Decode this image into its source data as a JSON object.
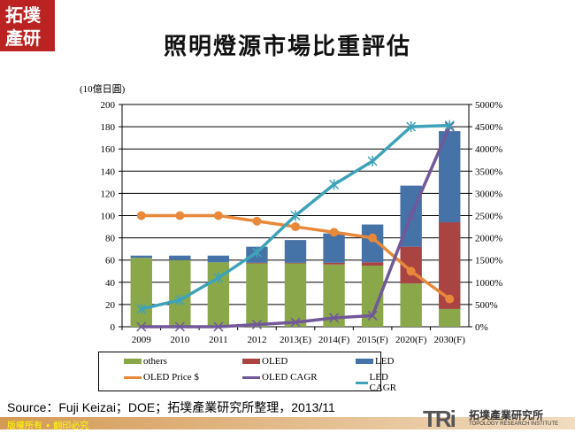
{
  "logo": {
    "text": "拓墣產研"
  },
  "title": "照明燈源市場比重評估",
  "chart_data": {
    "type": "bar",
    "stacked": true,
    "unit_label": "(10億日圓)",
    "categories": [
      "2009",
      "2010",
      "2011",
      "2012",
      "2013(E)",
      "2014(F)",
      "2015(F)",
      "2020(F)",
      "2030(F)"
    ],
    "ylim": [
      0,
      200
    ],
    "yticks": [
      0,
      20,
      40,
      60,
      80,
      100,
      120,
      140,
      160,
      180,
      200
    ],
    "y2lim": [
      0,
      5000
    ],
    "y2ticks": [
      "0%",
      "500%",
      "1000%",
      "1500%",
      "2000%",
      "2500%",
      "3000%",
      "3500%",
      "4000%",
      "4500%",
      "5000%"
    ],
    "grid": true,
    "legend_placement": "bottom",
    "series": [
      {
        "name": "others",
        "kind": "bar",
        "axis": "left",
        "color": "#8aa84a",
        "values": [
          62,
          60,
          58,
          57,
          57,
          56,
          55,
          39,
          16
        ]
      },
      {
        "name": "OLED",
        "kind": "bar",
        "axis": "left",
        "color": "#a94442",
        "values": [
          0,
          0,
          0,
          0.5,
          0.5,
          1.5,
          3,
          33,
          78
        ]
      },
      {
        "name": "LED",
        "kind": "bar",
        "axis": "left",
        "color": "#4572a7",
        "values": [
          2,
          4,
          6,
          14.5,
          20.5,
          26.5,
          34,
          55,
          82
        ]
      },
      {
        "name": "OLED Price $",
        "kind": "line",
        "axis": "left",
        "color": "#e8883a",
        "marker": "circle",
        "values": [
          100,
          100,
          100,
          95,
          90,
          85,
          80,
          50,
          25
        ]
      },
      {
        "name": "OLED CAGR",
        "kind": "line",
        "axis": "right",
        "color": "#71589a",
        "marker": "x",
        "values": [
          0,
          0,
          0,
          50,
          100,
          200,
          250,
          2500,
          4500
        ]
      },
      {
        "name": "LED CAGR",
        "kind": "line",
        "axis": "right",
        "color": "#3ea3b8",
        "marker": "star",
        "values": [
          400,
          600,
          1100,
          1675,
          2500,
          3200,
          3725,
          4500,
          4530
        ]
      }
    ]
  },
  "source": "Source：Fuji  Keizai；DOE；拓墣產業研究所整理，2013/11",
  "footer": {
    "copyright": "版權所有 • 翻印必究"
  },
  "brand": {
    "mark": "TRi",
    "name": "拓墣產業研究所",
    "english": "TOPOLOGY RESEARCH INSTITUTE"
  }
}
